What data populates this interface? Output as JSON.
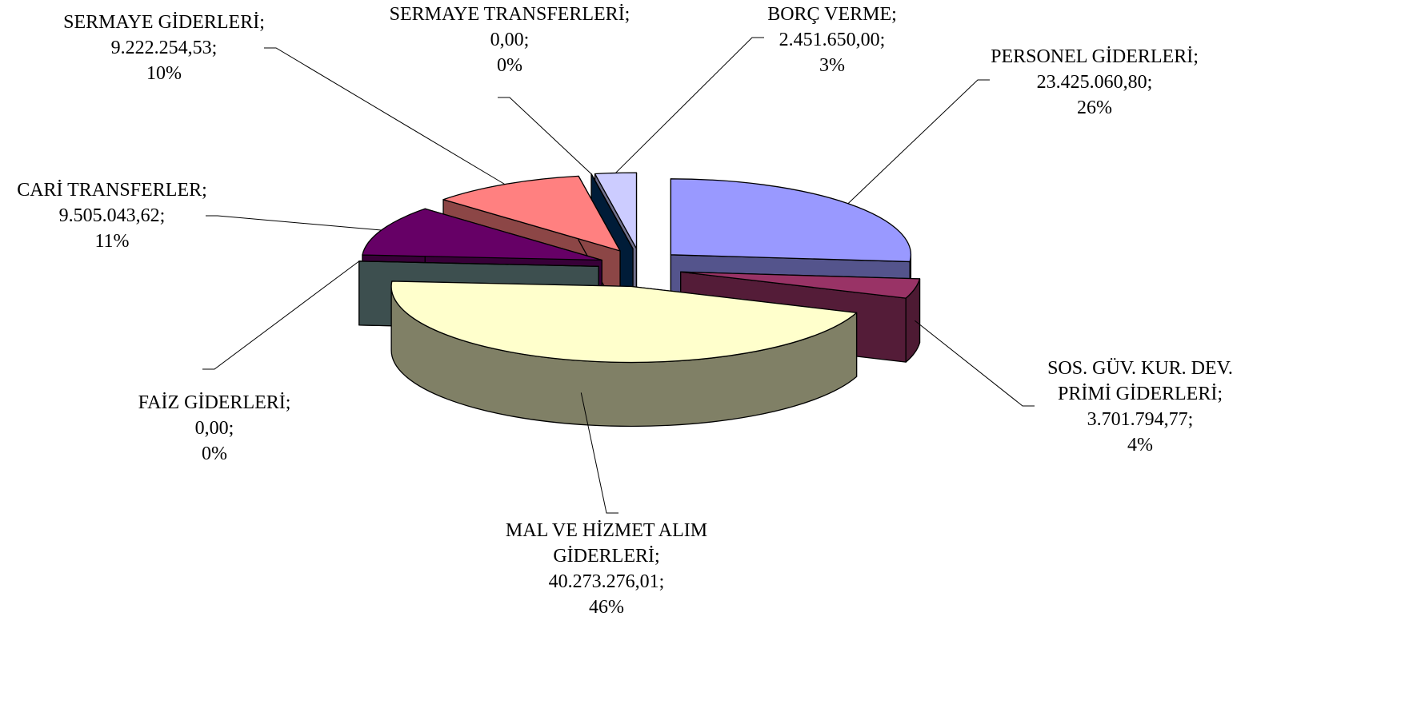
{
  "chart_data": {
    "type": "pie3d",
    "categories": [
      "PERSONEL GİDERLERİ;",
      "SOS. GÜV. KUR. DEV. PRİMİ GİDERLERİ;",
      "MAL VE HİZMET ALIM GİDERLERİ;",
      "FAİZ GİDERLERİ;",
      "CARİ TRANSFERLER;",
      "SERMAYE GİDERLERİ;",
      "SERMAYE TRANSFERLERİ;",
      "BORÇ VERME;"
    ],
    "values": [
      23425060.8,
      3701794.77,
      40273276.01,
      0.0,
      9505043.62,
      9222254.53,
      0.0,
      2451650.0
    ],
    "value_labels": [
      "23.425.060,80;",
      "3.701.794,77;",
      "40.273.276,01;",
      "0,00;",
      "9.505.043,62;",
      "9.222.254,53;",
      "0,00;",
      "2.451.650,00;"
    ],
    "percent_labels": [
      "26%",
      "4%",
      "46%",
      "0%",
      "11%",
      "10%",
      "0%",
      "3%"
    ],
    "colors": [
      "#9999ff",
      "#993366",
      "#ffffcc",
      "#6f9090",
      "#660066",
      "#ff8080",
      "#003366",
      "#ccccff"
    ]
  }
}
